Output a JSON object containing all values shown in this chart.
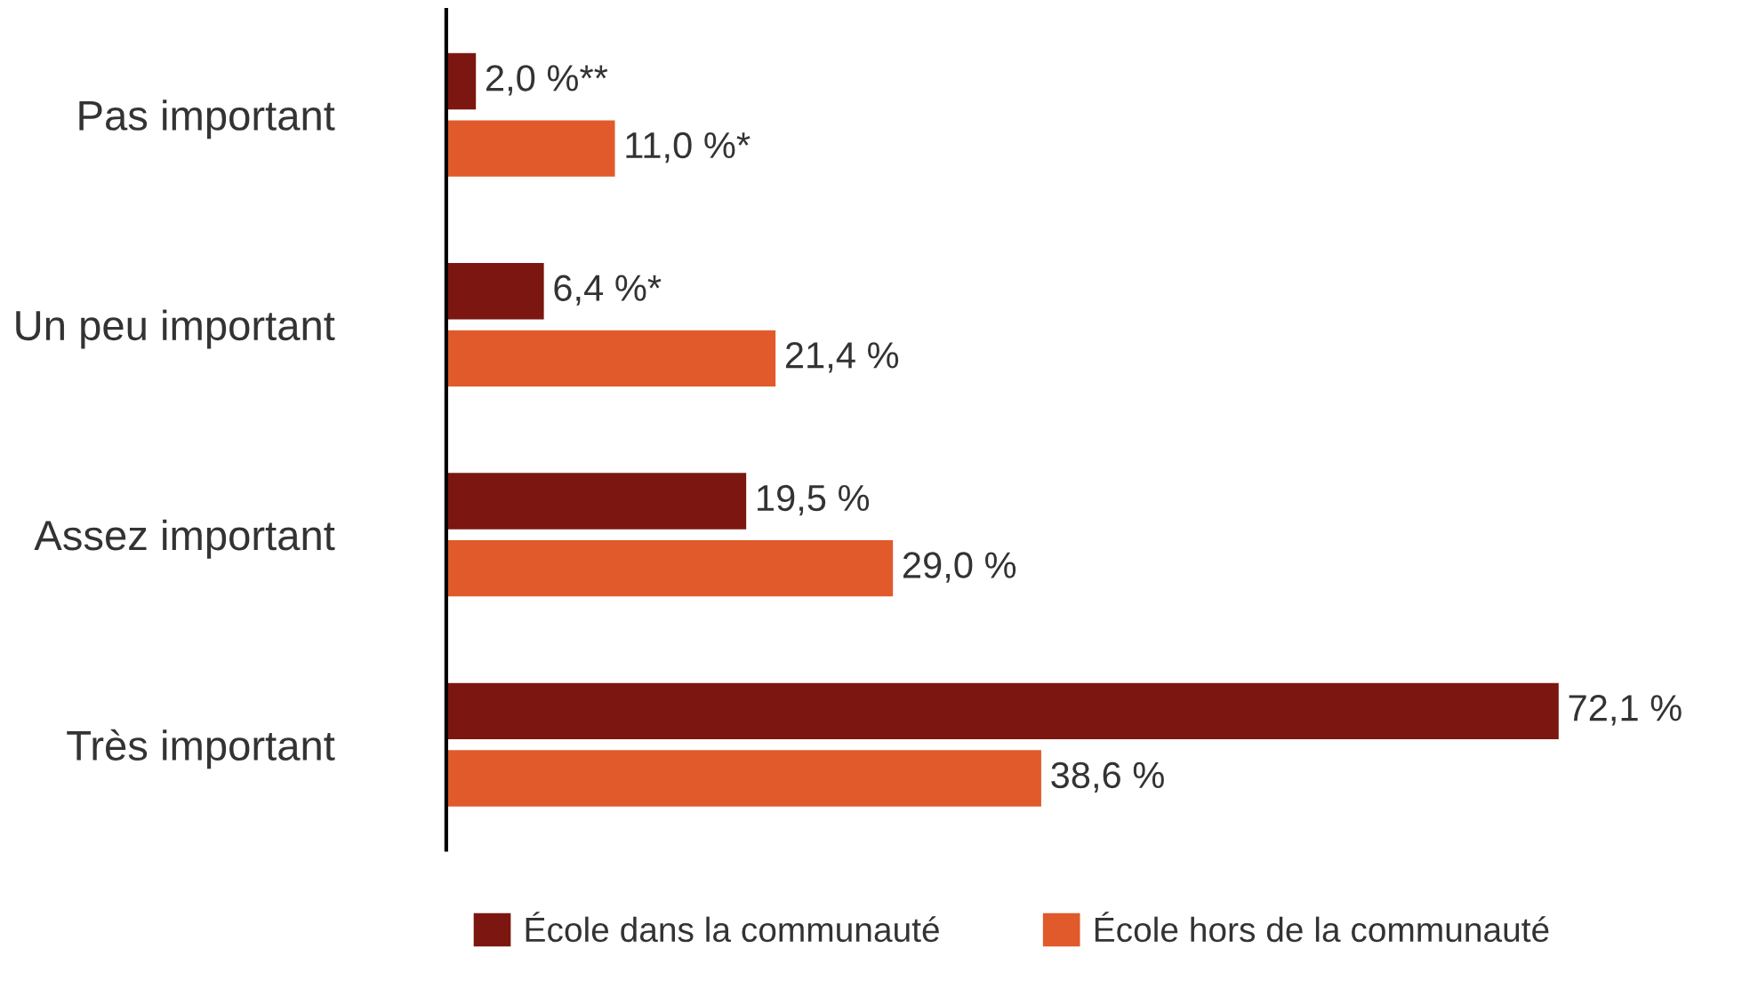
{
  "chart_data": {
    "type": "bar",
    "orientation": "horizontal",
    "categories": [
      "Pas important",
      "Un peu important",
      "Assez important",
      "Très important"
    ],
    "series": [
      {
        "name": "École dans la communauté",
        "color": "#7b1710",
        "values": [
          2.0,
          6.4,
          19.5,
          72.1
        ],
        "value_labels": [
          "2,0 %**",
          "6,4 %*",
          "19,5 %",
          "72,1 %"
        ]
      },
      {
        "name": "École hors de la communauté",
        "color": "#e05a2b",
        "values": [
          11.0,
          21.4,
          29.0,
          38.6
        ],
        "value_labels": [
          "11,0 %*",
          "21,4 %",
          "29,0 %",
          "38,6 %"
        ]
      }
    ],
    "legend": "bottom",
    "grid": false
  }
}
